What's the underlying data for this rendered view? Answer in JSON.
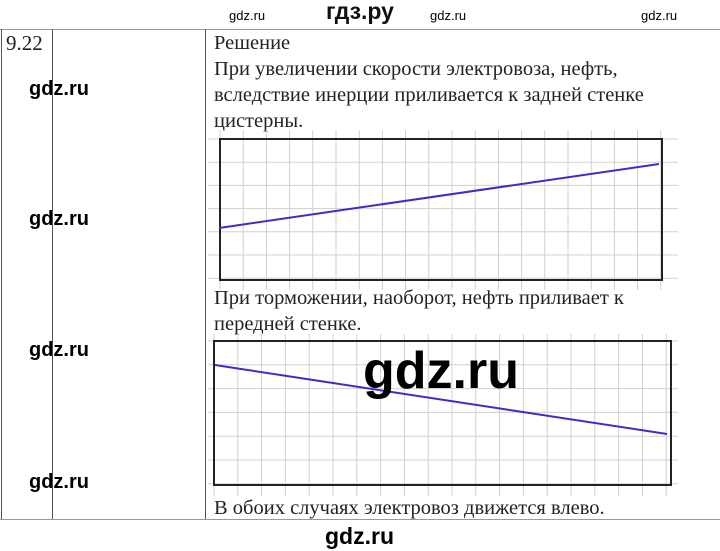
{
  "header": {
    "site_title": "гдз.ру"
  },
  "task": {
    "number": "9.22",
    "solution_label": "Решение",
    "paragraph1": [
      "При увеличении скорости электровоза, нефть,",
      "вследствие инерции приливается к задней стенке",
      "цистерны."
    ],
    "paragraph2": [
      "При торможении, наоборот, нефть приливает к",
      "передней стенке."
    ],
    "conclusion": "В обоих случаях электровоз движется влево."
  },
  "figures": [
    {
      "description_type": "oil-surface-accelerating",
      "line_color": "#3a2fc0",
      "slope": "rising-right"
    },
    {
      "description_type": "oil-surface-braking",
      "line_color": "#3a2fc0",
      "slope": "falling-right"
    }
  ],
  "watermarks": {
    "text": "gdz.ru"
  },
  "colors": {
    "line": "#3a2fc0",
    "grid": "#d0d0d0",
    "frame": "#222222"
  }
}
